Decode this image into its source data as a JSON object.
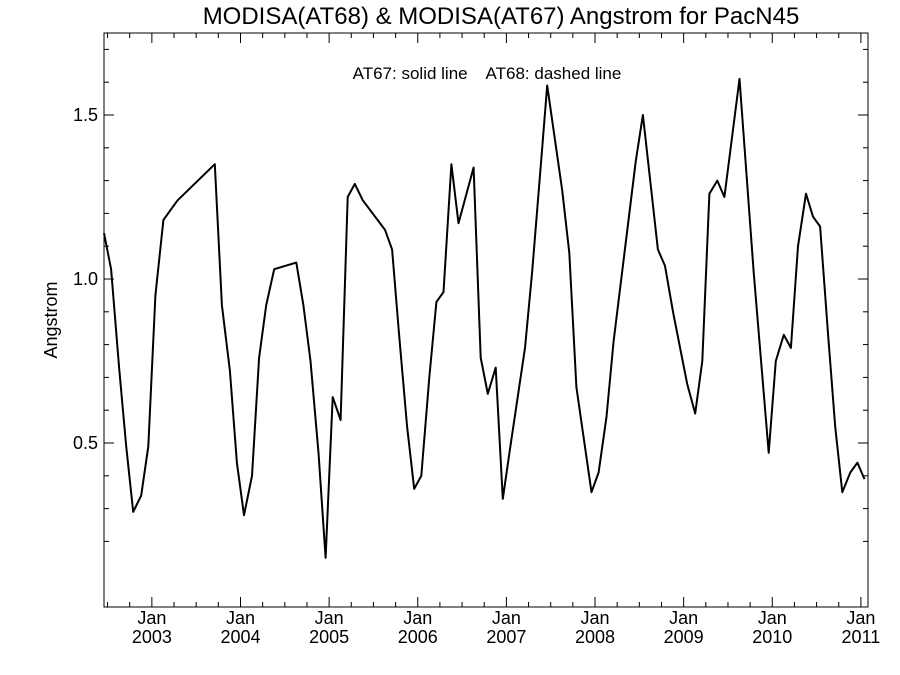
{
  "chart_data": {
    "type": "line",
    "title": "MODISA(AT68) & MODISA(AT67)  Angstrom for PacN45",
    "annotation": "AT67: solid line    AT68: dashed line",
    "ylabel": "Angstrom",
    "xlabel": "",
    "xlim": [
      2002.46,
      2011.08
    ],
    "ylim": [
      0.0,
      1.75
    ],
    "grid": false,
    "y_ticks": [
      {
        "value": 0.5,
        "label": "0.5"
      },
      {
        "value": 1.0,
        "label": "1.0"
      },
      {
        "value": 1.5,
        "label": "1.5"
      }
    ],
    "y_minor_ticks": [
      0.2,
      0.3,
      0.4,
      0.6,
      0.7,
      0.8,
      0.9,
      1.1,
      1.2,
      1.3,
      1.4,
      1.6,
      1.7
    ],
    "x_ticks": [
      {
        "value": 2003.0,
        "month": "Jan",
        "year": "2003"
      },
      {
        "value": 2004.0,
        "month": "Jan",
        "year": "2004"
      },
      {
        "value": 2005.0,
        "month": "Jan",
        "year": "2005"
      },
      {
        "value": 2006.0,
        "month": "Jan",
        "year": "2006"
      },
      {
        "value": 2007.0,
        "month": "Jan",
        "year": "2007"
      },
      {
        "value": 2008.0,
        "month": "Jan",
        "year": "2008"
      },
      {
        "value": 2009.0,
        "month": "Jan",
        "year": "2009"
      },
      {
        "value": 2010.0,
        "month": "Jan",
        "year": "2010"
      },
      {
        "value": 2011.0,
        "month": "Jan",
        "year": "2011"
      }
    ],
    "x_minor_ticks": [
      2002.5,
      2002.75,
      2003.25,
      2003.5,
      2003.75,
      2004.25,
      2004.5,
      2004.75,
      2005.25,
      2005.5,
      2005.75,
      2006.25,
      2006.5,
      2006.75,
      2007.25,
      2007.5,
      2007.75,
      2008.25,
      2008.5,
      2008.75,
      2009.25,
      2009.5,
      2009.75,
      2010.25,
      2010.5,
      2010.75
    ],
    "series": [
      {
        "name": "AT67",
        "style": "solid",
        "color": "#000000",
        "x": [
          2002.46,
          2002.54,
          2002.63,
          2002.71,
          2002.79,
          2002.88,
          2002.96,
          2003.04,
          2003.13,
          2003.21,
          2003.29,
          2003.71,
          2003.79,
          2003.88,
          2003.96,
          2004.04,
          2004.13,
          2004.21,
          2004.29,
          2004.38,
          2004.63,
          2004.71,
          2004.79,
          2004.88,
          2004.96,
          2005.04,
          2005.13,
          2005.21,
          2005.29,
          2005.38,
          2005.63,
          2005.71,
          2005.79,
          2005.88,
          2005.96,
          2006.04,
          2006.13,
          2006.21,
          2006.29,
          2006.38,
          2006.46,
          2006.63,
          2006.71,
          2006.79,
          2006.88,
          2006.96,
          2007.04,
          2007.21,
          2007.29,
          2007.38,
          2007.46,
          2007.63,
          2007.71,
          2007.79,
          2007.96,
          2008.04,
          2008.13,
          2008.21,
          2008.46,
          2008.54,
          2008.71,
          2008.79,
          2008.88,
          2009.04,
          2009.13,
          2009.21,
          2009.29,
          2009.38,
          2009.46,
          2009.63,
          2009.79,
          2009.96,
          2010.04,
          2010.13,
          2010.21,
          2010.29,
          2010.38,
          2010.46,
          2010.54,
          2010.63,
          2010.71,
          2010.79,
          2010.88,
          2010.96,
          2011.04
        ],
        "values": [
          1.14,
          1.03,
          0.73,
          0.49,
          0.29,
          0.34,
          0.49,
          0.95,
          1.18,
          1.21,
          1.24,
          1.35,
          0.92,
          0.72,
          0.44,
          0.28,
          0.4,
          0.76,
          0.92,
          1.03,
          1.05,
          0.92,
          0.75,
          0.47,
          0.15,
          0.64,
          0.57,
          1.25,
          1.29,
          1.24,
          1.15,
          1.09,
          0.83,
          0.55,
          0.36,
          0.4,
          0.7,
          0.93,
          0.96,
          1.35,
          1.17,
          1.34,
          0.76,
          0.65,
          0.73,
          0.33,
          0.48,
          0.79,
          1.02,
          1.32,
          1.59,
          1.27,
          1.08,
          0.67,
          0.35,
          0.41,
          0.58,
          0.81,
          1.36,
          1.5,
          1.09,
          1.04,
          0.9,
          0.68,
          0.59,
          0.75,
          1.26,
          1.3,
          1.25,
          1.61,
          1.02,
          0.47,
          0.75,
          0.83,
          0.79,
          1.1,
          1.26,
          1.19,
          1.16,
          0.83,
          0.55,
          0.35,
          0.41,
          0.44,
          0.39
        ]
      }
    ]
  }
}
